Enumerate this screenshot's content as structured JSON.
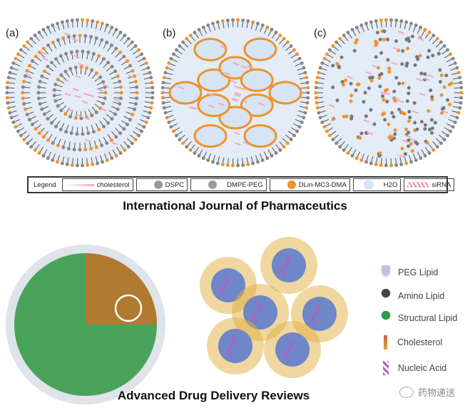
{
  "top_panels": {
    "labels": [
      "(a)",
      "(b)",
      "(c)"
    ]
  },
  "legend": {
    "title": "Legend",
    "items": [
      {
        "label": "cholesterol",
        "color": "#f4a7b9"
      },
      {
        "label": "DSPC",
        "color": "#9a9a9a"
      },
      {
        "label": "DMPE-PEG",
        "color": "#9a9a9a"
      },
      {
        "label": "DLin-MC3-DMA",
        "color": "#f0922b"
      },
      {
        "label": "H2O",
        "color": "#d6e4f5"
      },
      {
        "label": "siRNA",
        "color": "#f08a9a"
      }
    ]
  },
  "top_caption": "International Journal of Pharmaceutics",
  "bottom_legend": [
    {
      "label": "PEG Lipid",
      "icon": "peg-lipid-icon",
      "color": "#b8c2e0"
    },
    {
      "label": "Amino Lipid",
      "icon": "amino-lipid-icon",
      "color": "#444444"
    },
    {
      "label": "Structural Lipid",
      "icon": "structural-lipid-icon",
      "color": "#2e9a4a"
    },
    {
      "label": "Cholesterol",
      "icon": "cholesterol-icon",
      "color": "#d0603a"
    },
    {
      "label": "Nucleic Acid",
      "icon": "nucleic-acid-icon",
      "color": "#b060c0"
    }
  ],
  "bottom_caption": "Advanced Drug Delivery Reviews",
  "watermark": "药物递送"
}
